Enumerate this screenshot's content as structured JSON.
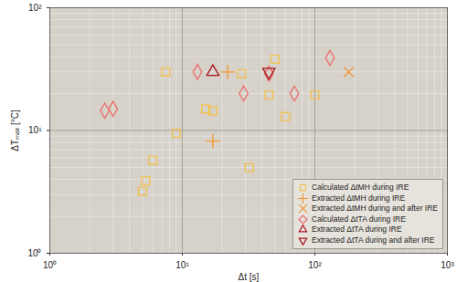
{
  "chart_data": {
    "type": "scatter",
    "x_label": "Δt [s]",
    "y_label": "ΔTₘₐₓ [°C]",
    "log": true,
    "grid": true,
    "legend": "bottom right",
    "xlim": [
      1,
      1000
    ],
    "ylim": [
      1,
      100
    ],
    "xticks": [
      {
        "value": 1,
        "label": "10⁰"
      },
      {
        "value": 10,
        "label": "10¹"
      },
      {
        "value": 100,
        "label": "10²"
      },
      {
        "value": 1000,
        "label": "10³"
      }
    ],
    "yticks": [
      {
        "value": 1,
        "label": "10⁰"
      },
      {
        "value": 10,
        "label": "10¹"
      },
      {
        "value": 100,
        "label": "10²"
      }
    ],
    "series": [
      {
        "name": "Calculated ΔtMH during IRE",
        "color": "#f2c24e",
        "marker": "square",
        "x": [
          5,
          5.3,
          6,
          7.5,
          9,
          15,
          17,
          28,
          32,
          45,
          50,
          60,
          100
        ],
        "values": [
          3.2,
          3.9,
          5.7,
          30,
          9.5,
          15,
          14.5,
          29,
          5,
          19.5,
          38,
          13,
          19.5
        ]
      },
      {
        "name": "Extracted ΔtMH during IRE",
        "color": "#f0962c",
        "marker": "plus",
        "x": [
          22,
          17
        ],
        "values": [
          30,
          8.2
        ]
      },
      {
        "name": "Extracted ΔtMH during and after IRE",
        "color": "#f0962c",
        "marker": "times",
        "x": [
          180
        ],
        "values": [
          30
        ]
      },
      {
        "name": "Calculated ΔtTA during IRE",
        "color": "#ec6a6a",
        "marker": "diamond",
        "x": [
          2.6,
          3,
          13,
          29,
          45,
          70,
          130
        ],
        "values": [
          14.5,
          15,
          30,
          20,
          29,
          20,
          39
        ]
      },
      {
        "name": "Extracted ΔtTA during IRE",
        "color": "#a8161e",
        "marker": "triangle",
        "x": [
          17
        ],
        "values": [
          30
        ]
      },
      {
        "name": "Extracted ΔtTA during and after IRE",
        "color": "#a8161e",
        "marker": "triangle-down",
        "x": [
          45
        ],
        "values": [
          30
        ]
      }
    ]
  }
}
